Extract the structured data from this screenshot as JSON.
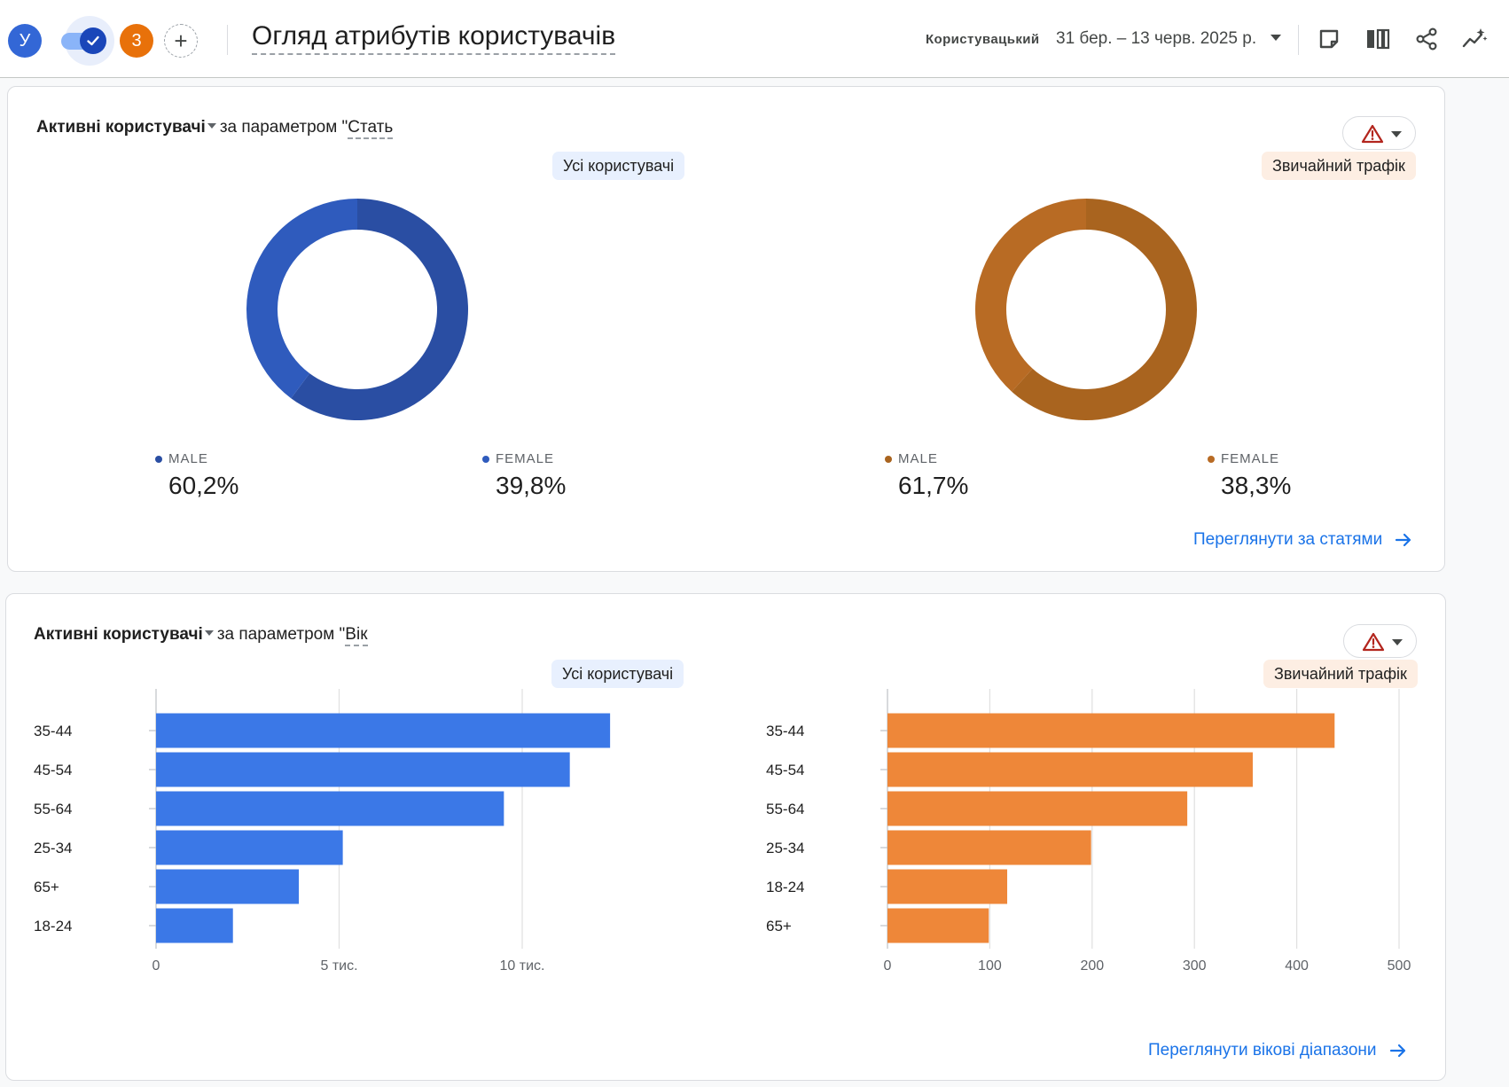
{
  "header": {
    "avatar_letter": "У",
    "badge_count": "3",
    "title": "Огляд атрибутів користувачів",
    "compare_label": "Користувацький",
    "date_range": "31 бер. – 13 черв. 2025 р.",
    "icons": [
      "note-icon",
      "compare-columns-icon",
      "share-icon",
      "insights-icon"
    ]
  },
  "colors": {
    "all_users": "#3367d6",
    "all_users_donut": "#2a56c6",
    "all_users_bar": "#3b78e7",
    "organic": "#b8651e",
    "organic_bar": "#ee8739",
    "link": "#1a73e8",
    "warning": "#b3261e"
  },
  "gender_card": {
    "metric": "Активні користувачі",
    "param_prefix": "за параметром \"",
    "dimension": "Стать",
    "segments": [
      "Усі користувачі",
      "Звичайний трафік"
    ],
    "view_link": "Переглянути за статями",
    "legend": [
      [
        {
          "label": "MALE",
          "value": "60,2%"
        },
        {
          "label": "FEMALE",
          "value": "39,8%"
        }
      ],
      [
        {
          "label": "MALE",
          "value": "61,7%"
        },
        {
          "label": "FEMALE",
          "value": "38,3%"
        }
      ]
    ]
  },
  "age_card": {
    "metric": "Активні користувачі",
    "param_prefix": "за параметром \"",
    "dimension": "Вік",
    "segments": [
      "Усі користувачі",
      "Звичайний трафік"
    ],
    "view_link": "Переглянути вікові діапазони"
  },
  "chart_data": [
    {
      "type": "pie",
      "variant": "donut",
      "segment": "Усі користувачі",
      "categories": [
        "MALE",
        "FEMALE"
      ],
      "values": [
        60.2,
        39.8
      ],
      "colors": [
        "#2a4ea3",
        "#2f5bbd"
      ]
    },
    {
      "type": "pie",
      "variant": "donut",
      "segment": "Звичайний трафік",
      "categories": [
        "MALE",
        "FEMALE"
      ],
      "values": [
        61.7,
        38.3
      ],
      "colors": [
        "#a9641f",
        "#b86b24"
      ]
    },
    {
      "type": "bar",
      "orientation": "horizontal",
      "segment": "Усі користувачі",
      "categories": [
        "35-44",
        "45-54",
        "55-64",
        "25-34",
        "65+",
        "18-24"
      ],
      "values": [
        12400,
        11300,
        9500,
        5100,
        3900,
        2100
      ],
      "xlim": [
        0,
        12500
      ],
      "ticks": [
        0,
        5000,
        10000
      ],
      "tick_labels": [
        "0",
        "5 тис.",
        "10 тис."
      ],
      "grid": true,
      "color": "#3b78e7"
    },
    {
      "type": "bar",
      "orientation": "horizontal",
      "segment": "Звичайний трафік",
      "categories": [
        "35-44",
        "45-54",
        "55-64",
        "25-34",
        "18-24",
        "65+"
      ],
      "values": [
        437,
        357,
        293,
        199,
        117,
        99
      ],
      "xlim": [
        0,
        500
      ],
      "ticks": [
        0,
        100,
        200,
        300,
        400,
        500
      ],
      "tick_labels": [
        "0",
        "100",
        "200",
        "300",
        "400",
        "500"
      ],
      "grid": true,
      "color": "#ee8739"
    }
  ]
}
